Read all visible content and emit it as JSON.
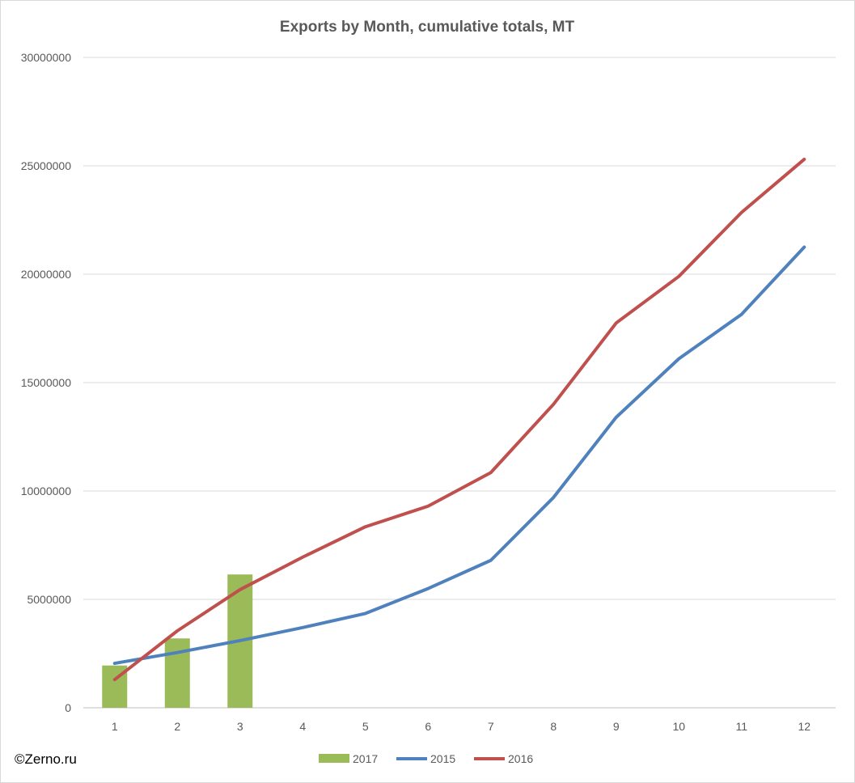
{
  "watermark": "©Zerno.ru",
  "chart_data": {
    "type": "bar",
    "title": "Exports by Month, cumulative totals, MT",
    "xlabel": "",
    "ylabel": "",
    "categories": [
      "1",
      "2",
      "3",
      "4",
      "5",
      "6",
      "7",
      "8",
      "9",
      "10",
      "11",
      "12"
    ],
    "ylim": [
      0,
      30000000
    ],
    "yticks": [
      0,
      5000000,
      10000000,
      15000000,
      20000000,
      25000000,
      30000000
    ],
    "ytick_labels": [
      "0",
      "5000000",
      "10000000",
      "15000000",
      "20000000",
      "25000000",
      "30000000"
    ],
    "grid": true,
    "legend_position": "bottom",
    "series": [
      {
        "name": "2017",
        "kind": "bar",
        "color": "#9bbb59",
        "values": [
          1950000,
          3200000,
          6150000,
          null,
          null,
          null,
          null,
          null,
          null,
          null,
          null,
          null
        ]
      },
      {
        "name": "2015",
        "kind": "line",
        "color": "#4f81bd",
        "values": [
          2050000,
          2550000,
          3100000,
          3700000,
          4350000,
          5500000,
          6800000,
          9700000,
          13400000,
          16100000,
          18150000,
          21250000
        ]
      },
      {
        "name": "2016",
        "kind": "line",
        "color": "#c0504d",
        "values": [
          1300000,
          3550000,
          5450000,
          6950000,
          8350000,
          9300000,
          10850000,
          14000000,
          17750000,
          19900000,
          22850000,
          25300000
        ]
      }
    ]
  }
}
